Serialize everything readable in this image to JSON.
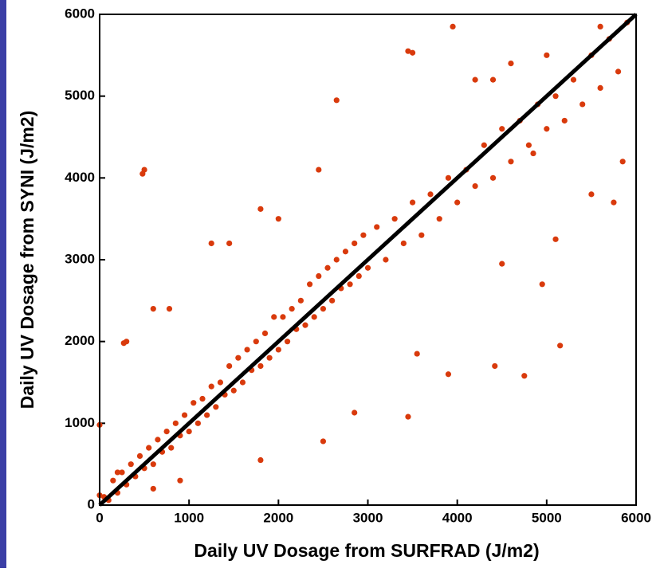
{
  "chart_data": {
    "type": "scatter",
    "x_label": "Daily UV Dosage from SURFRAD (J/m2)",
    "y_label": "Daily UV Dosage from SYNI (J/m2)",
    "xlim": [
      0,
      6000
    ],
    "ylim": [
      0,
      6000
    ],
    "xticks": [
      0,
      1000,
      2000,
      3000,
      4000,
      5000,
      6000
    ],
    "yticks": [
      0,
      1000,
      2000,
      3000,
      4000,
      5000,
      6000
    ],
    "series": [
      {
        "color": "#d93a0c",
        "x": [
          50,
          100,
          150,
          200,
          250,
          300,
          350,
          400,
          450,
          500,
          550,
          600,
          650,
          700,
          750,
          800,
          850,
          900,
          950,
          1000,
          1050,
          1100,
          1150,
          1200,
          1250,
          1300,
          1350,
          1400,
          1450,
          1500,
          1550,
          1600,
          1650,
          1700,
          1750,
          1800,
          1850,
          1900,
          1950,
          2000,
          2050,
          2100,
          2150,
          2200,
          2250,
          2300,
          2350,
          2400,
          2450,
          2500,
          2550,
          2600,
          2650,
          2700,
          2750,
          2800,
          2850,
          2900,
          2950,
          3000,
          3100,
          3200,
          3300,
          3400,
          3500,
          3600,
          3700,
          3800,
          3900,
          4000,
          4100,
          4200,
          4300,
          4400,
          4500,
          4600,
          4700,
          4800,
          4900,
          5000,
          5100,
          5200,
          5300,
          5400,
          5500,
          5600,
          5700,
          5800,
          5900,
          5850,
          500,
          480,
          2650,
          3950,
          3450,
          3500,
          2450,
          1800,
          2000,
          5150,
          4750,
          3450,
          2500,
          2850,
          1800,
          4420,
          3900,
          3550,
          4500,
          4950,
          300,
          270,
          600,
          780,
          1250,
          1450,
          4850,
          5750,
          5500,
          5100,
          4200,
          4400,
          4600,
          5000,
          5600,
          0,
          0,
          200,
          600,
          900
        ],
        "values": [
          100,
          60,
          300,
          150,
          400,
          250,
          500,
          350,
          600,
          450,
          700,
          500,
          800,
          650,
          900,
          700,
          1000,
          850,
          1100,
          900,
          1250,
          1000,
          1300,
          1100,
          1450,
          1200,
          1500,
          1350,
          1700,
          1400,
          1800,
          1500,
          1900,
          1650,
          2000,
          1700,
          2100,
          1800,
          2300,
          1900,
          2300,
          2000,
          2400,
          2150,
          2500,
          2200,
          2700,
          2300,
          2800,
          2400,
          2900,
          2500,
          3000,
          2650,
          3100,
          2700,
          3200,
          2800,
          3300,
          2900,
          3400,
          3000,
          3500,
          3200,
          3700,
          3300,
          3800,
          3500,
          4000,
          3700,
          4100,
          3900,
          4400,
          4000,
          4600,
          4200,
          4700,
          4400,
          4900,
          4600,
          5000,
          4700,
          5200,
          4900,
          5500,
          5100,
          5700,
          5300,
          5900,
          4200,
          4100,
          4050,
          4950,
          5850,
          5550,
          5530,
          4100,
          3620,
          3500,
          1950,
          1580,
          1080,
          780,
          1130,
          550,
          1700,
          1600,
          1850,
          2950,
          2700,
          2000,
          1980,
          2400,
          2400,
          3200,
          3200,
          4300,
          3700,
          3800,
          3250,
          5200,
          5200,
          5400,
          5500,
          5850,
          980,
          120,
          400,
          200,
          300
        ]
      }
    ],
    "lines": [
      {
        "color": "#000000",
        "x": [
          0,
          6000
        ],
        "values": [
          0,
          6000
        ]
      }
    ]
  }
}
